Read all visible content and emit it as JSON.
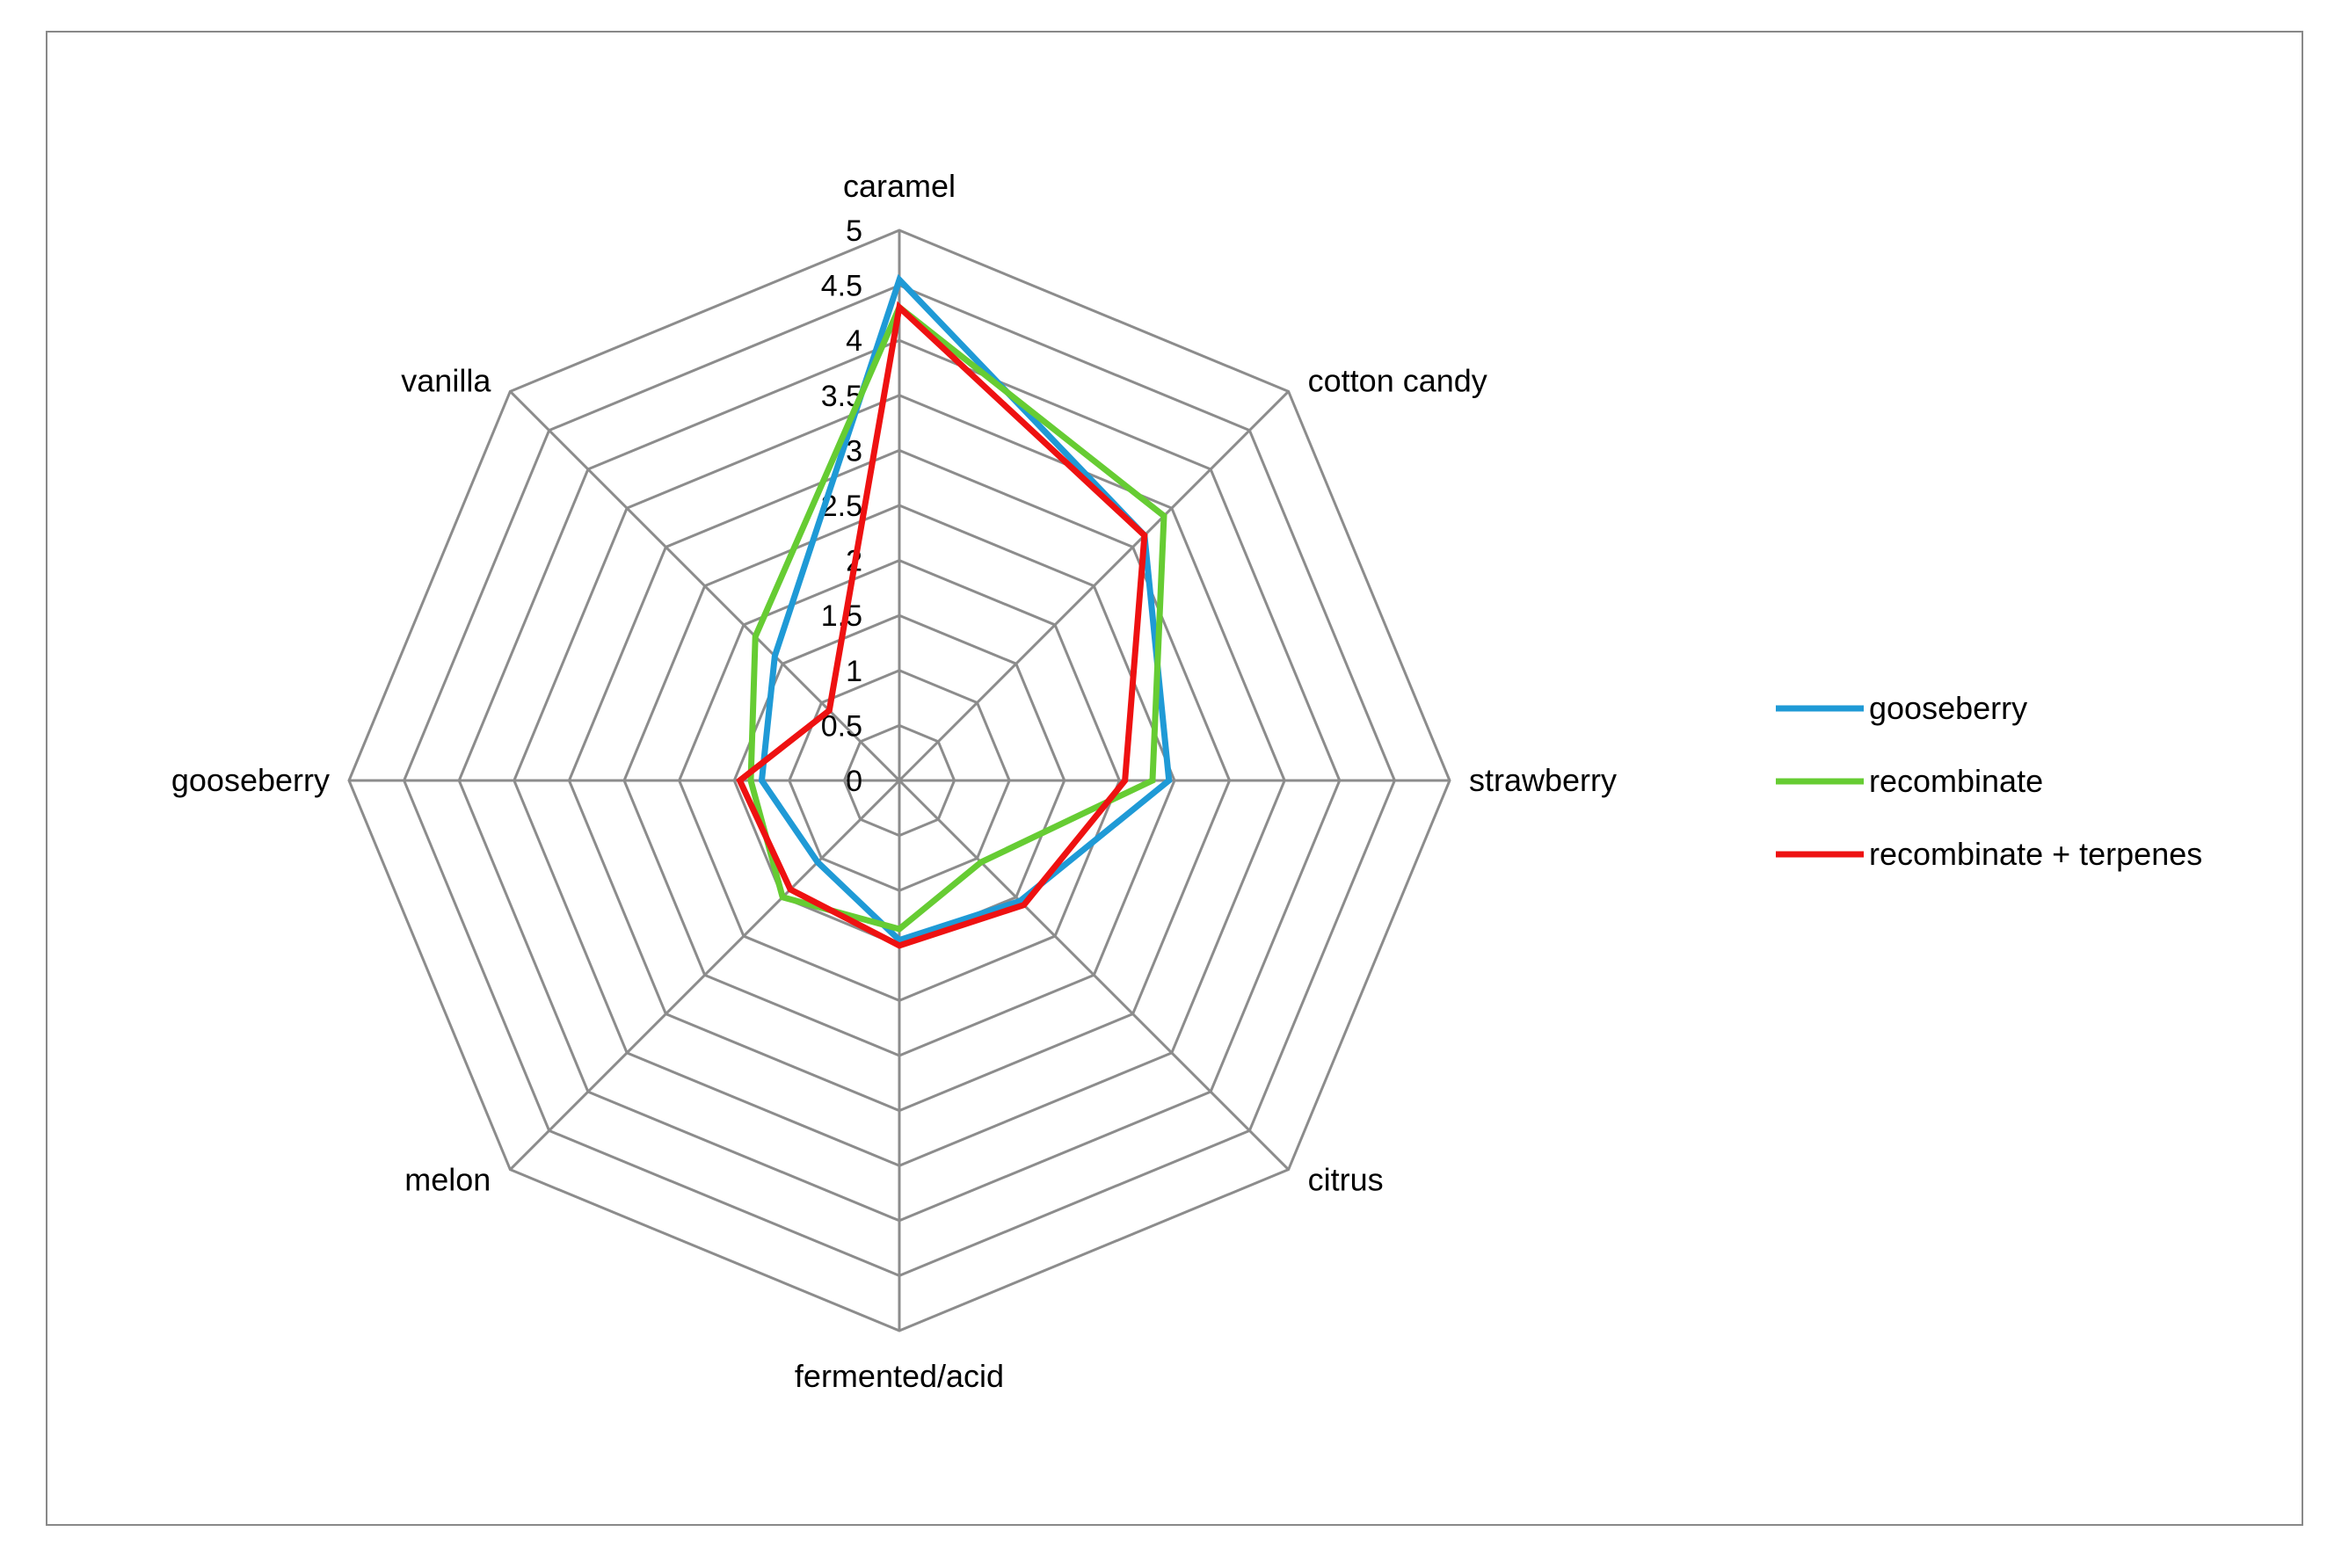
{
  "chart_data": {
    "type": "radar",
    "axes": [
      "caramel",
      "cotton candy",
      "strawberry",
      "citrus",
      "fermented/acid",
      "melon",
      "gooseberry",
      "vanilla"
    ],
    "rlim": [
      0,
      5
    ],
    "ticks": [
      "0",
      "0.5",
      "1",
      "1.5",
      "2",
      "2.5",
      "3",
      "3.5",
      "4",
      "4.5",
      "5"
    ],
    "grid": true,
    "legend_position": "right",
    "series": [
      {
        "name": "gooseberry",
        "color": "#1f9ad6",
        "values": [
          4.55,
          3.15,
          2.45,
          1.55,
          1.45,
          1.05,
          1.25,
          1.6
        ]
      },
      {
        "name": "recombinate",
        "color": "#66cc33",
        "values": [
          4.3,
          3.4,
          2.3,
          1.05,
          1.35,
          1.5,
          1.35,
          1.85
        ]
      },
      {
        "name": "recombinate + terpenes",
        "color": "#ee1111",
        "values": [
          4.3,
          3.15,
          2.05,
          1.6,
          1.5,
          1.4,
          1.45,
          0.9
        ]
      }
    ]
  }
}
